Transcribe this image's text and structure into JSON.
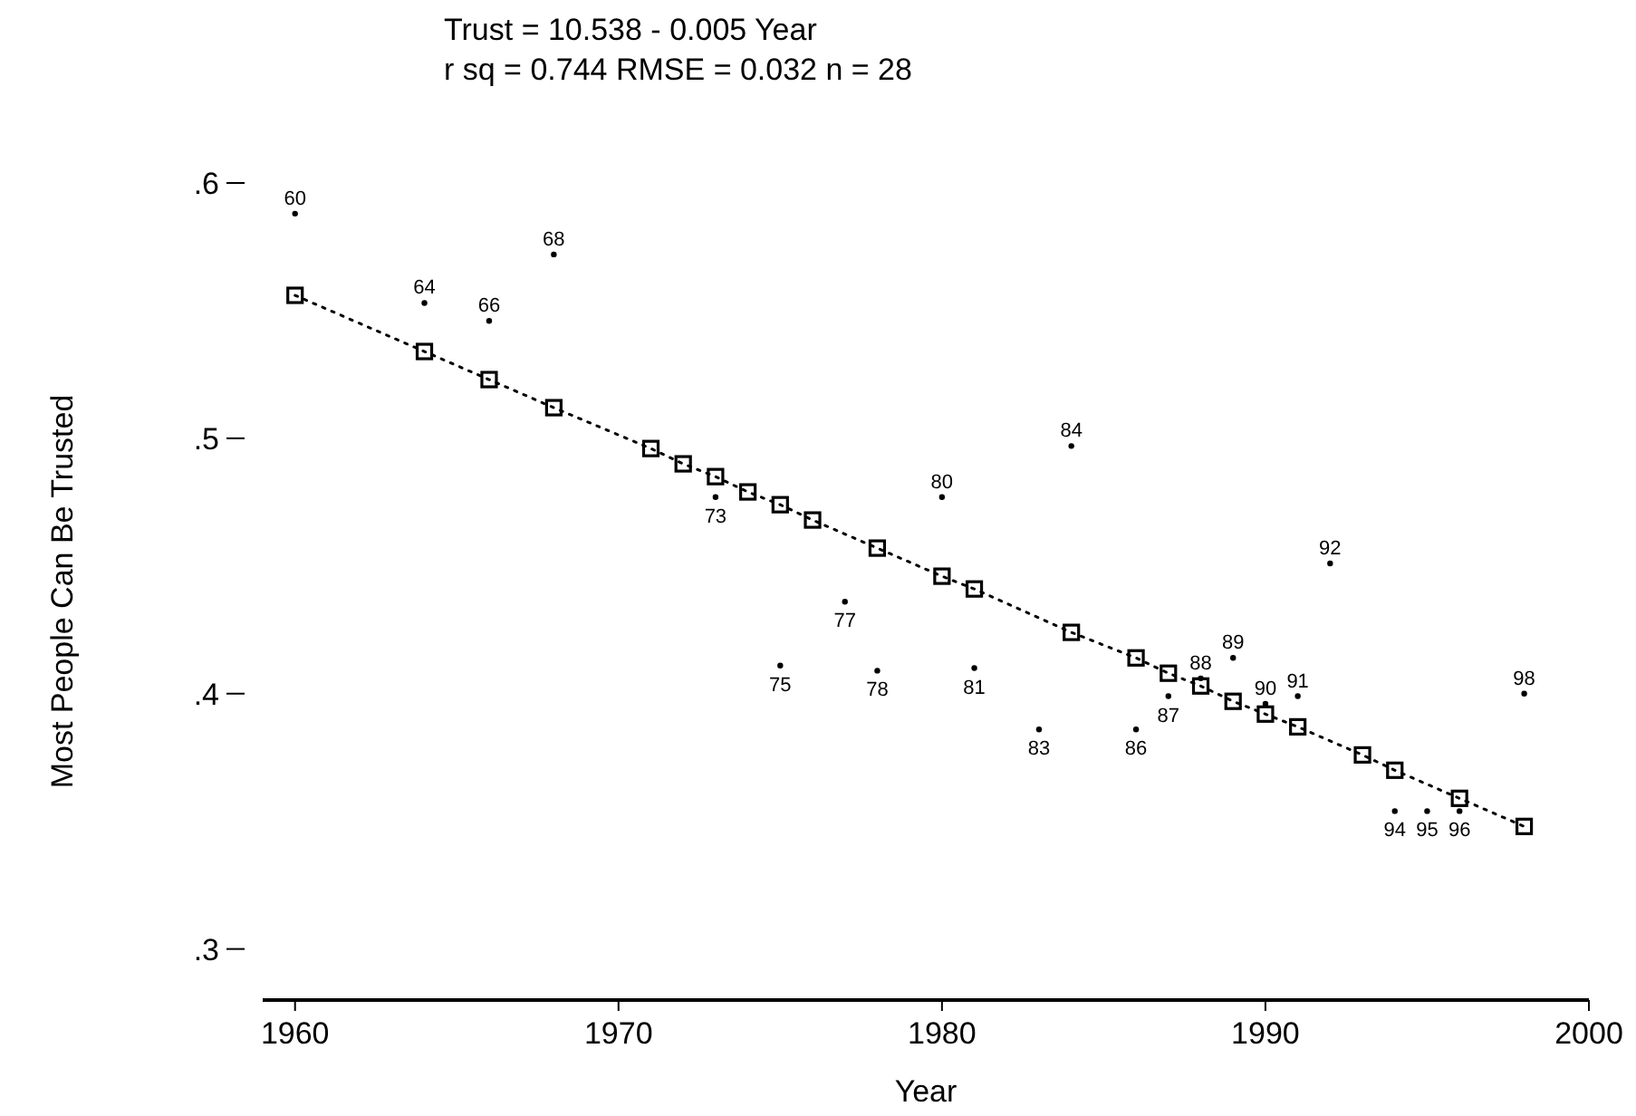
{
  "chart_data": {
    "type": "scatter",
    "title": "Trust = 10.538 - 0.005 Year",
    "subtitle": "r sq = 0.744  RMSE = 0.032  n = 28",
    "xlabel": "Year",
    "ylabel": "Most People Can Be Trusted",
    "xlim": [
      1959,
      2000
    ],
    "xticks": [
      1960,
      1970,
      1980,
      1990,
      2000
    ],
    "ylim": [
      0.28,
      0.6
    ],
    "yticks": [
      {
        "value": 0.3,
        "label": ".3"
      },
      {
        "value": 0.4,
        "label": ".4"
      },
      {
        "value": 0.5,
        "label": ".5"
      },
      {
        "value": 0.6,
        "label": ".6"
      }
    ],
    "grid": false,
    "annotations": [
      {
        "text": "60",
        "x": 1960,
        "y": 0.588
      },
      {
        "text": "64",
        "x": 1964,
        "y": 0.553
      },
      {
        "text": "66",
        "x": 1966,
        "y": 0.546
      },
      {
        "text": "68",
        "x": 1968,
        "y": 0.572
      },
      {
        "text": "73",
        "x": 1973,
        "y": 0.477
      },
      {
        "text": "75",
        "x": 1975,
        "y": 0.411
      },
      {
        "text": "77",
        "x": 1977,
        "y": 0.436
      },
      {
        "text": "78",
        "x": 1978,
        "y": 0.409
      },
      {
        "text": "80",
        "x": 1980,
        "y": 0.477
      },
      {
        "text": "81",
        "x": 1981,
        "y": 0.41
      },
      {
        "text": "83",
        "x": 1983,
        "y": 0.386
      },
      {
        "text": "84",
        "x": 1984,
        "y": 0.497
      },
      {
        "text": "86",
        "x": 1986,
        "y": 0.386
      },
      {
        "text": "87",
        "x": 1987,
        "y": 0.399
      },
      {
        "text": "88",
        "x": 1988,
        "y": 0.406
      },
      {
        "text": "89",
        "x": 1989,
        "y": 0.414
      },
      {
        "text": "90",
        "x": 1990,
        "y": 0.396
      },
      {
        "text": "91",
        "x": 1991,
        "y": 0.399
      },
      {
        "text": "92",
        "x": 1992,
        "y": 0.451
      },
      {
        "text": "94",
        "x": 1994,
        "y": 0.354
      },
      {
        "text": "95",
        "x": 1995,
        "y": 0.354
      },
      {
        "text": "96",
        "x": 1996,
        "y": 0.354
      },
      {
        "text": "98",
        "x": 1998,
        "y": 0.4
      }
    ],
    "series": [
      {
        "color": "#000000",
        "marker": "circle",
        "x": [
          1960,
          1964,
          1966,
          1968,
          1973,
          1975,
          1977,
          1978,
          1980,
          1981,
          1983,
          1984,
          1986,
          1987,
          1988,
          1989,
          1990,
          1991,
          1992,
          1994,
          1995,
          1996,
          1998
        ],
        "values": [
          0.588,
          0.553,
          0.546,
          0.572,
          0.477,
          0.411,
          0.436,
          0.409,
          0.477,
          0.41,
          0.386,
          0.497,
          0.386,
          0.399,
          0.406,
          0.414,
          0.396,
          0.399,
          0.451,
          0.354,
          0.354,
          0.354,
          0.4
        ]
      },
      {
        "type": "line",
        "color": "#000000",
        "marker": "square",
        "line_style": "dotted",
        "x": [
          1960,
          1964,
          1966,
          1968,
          1971,
          1972,
          1973,
          1974,
          1975,
          1976,
          1978,
          1980,
          1981,
          1984,
          1986,
          1987,
          1988,
          1989,
          1990,
          1991,
          1993,
          1994,
          1996,
          1998
        ],
        "values": [
          0.556,
          0.534,
          0.523,
          0.512,
          0.496,
          0.49,
          0.485,
          0.479,
          0.474,
          0.468,
          0.457,
          0.446,
          0.441,
          0.424,
          0.414,
          0.408,
          0.403,
          0.397,
          0.392,
          0.387,
          0.376,
          0.37,
          0.359,
          0.348
        ]
      }
    ]
  }
}
